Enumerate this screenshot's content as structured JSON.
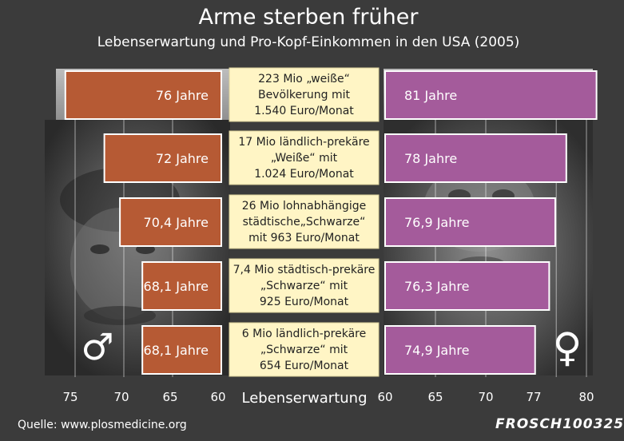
{
  "title": "Arme sterben früher",
  "subtitle": "Lebenserwartung und Pro-Kopf-Einkommen in den USA (2005)",
  "source": "Quelle: www.plosmedicine.org",
  "signature": "FROSCH100325",
  "male_symbol": "♂",
  "female_symbol": "♀",
  "colors": {
    "background": "#3b3b3b",
    "male_bar": "#b65a34",
    "female_bar": "#a45b9b",
    "label_box": "#fff5c5",
    "text_light": "#ffffff",
    "text_dark": "#222222"
  },
  "chart_data": {
    "type": "bar",
    "title": "Arme sterben früher",
    "subtitle": "Lebenserwartung und Pro-Kopf-Einkommen in den USA (2005)",
    "xlabel": "Lebenserwartung",
    "categories": [
      "223 Mio „weiße“ Bevölkerung mit 1.540 Euro/Monat",
      "17 Mio ländlich-prekäre „Weiße“ mit 1.024 Euro/Monat",
      "26 Mio lohnabhängige städtische„Schwarze“ mit 963 Euro/Monat",
      "7,4 Mio städtisch-prekäre „Schwarze“ mit 925 Euro/Monat",
      "6 Mio ländlich-prekäre „Schwarze“ mit 654 Euro/Monat"
    ],
    "category_lines": [
      [
        "223 Mio „weiße“",
        "Bevölkerung mit",
        "1.540 Euro/Monat"
      ],
      [
        "17 Mio ländlich-prekäre",
        "„Weiße“ mit",
        "1.024 Euro/Monat"
      ],
      [
        "26 Mio lohnabhängige",
        "städtische„Schwarze“",
        "mit 963 Euro/Monat"
      ],
      [
        "7,4 Mio städtisch-prekäre",
        "„Schwarze“ mit",
        "925 Euro/Monat"
      ],
      [
        "6 Mio ländlich-prekäre",
        "„Schwarze“ mit",
        "654 Euro/Monat"
      ]
    ],
    "series": [
      {
        "name": "Männer",
        "values": [
          76,
          72,
          70.4,
          68.1,
          68.1
        ],
        "labels": [
          "76 Jahre",
          "72 Jahre",
          "70,4 Jahre",
          "68,1 Jahre",
          "68,1 Jahre"
        ],
        "axis_range": [
          60,
          76.5
        ],
        "direction": "left"
      },
      {
        "name": "Frauen",
        "values": [
          81,
          78,
          76.9,
          76.3,
          74.9
        ],
        "labels": [
          "81 Jahre",
          "78 Jahre",
          "76,9 Jahre",
          "76,3 Jahre",
          "74,9 Jahre"
        ],
        "axis_range": [
          60,
          81
        ],
        "direction": "right"
      }
    ],
    "male_ticks": [
      "75",
      "70",
      "65",
      "60"
    ],
    "female_ticks": [
      "60",
      "65",
      "70",
      "77",
      "80"
    ]
  }
}
